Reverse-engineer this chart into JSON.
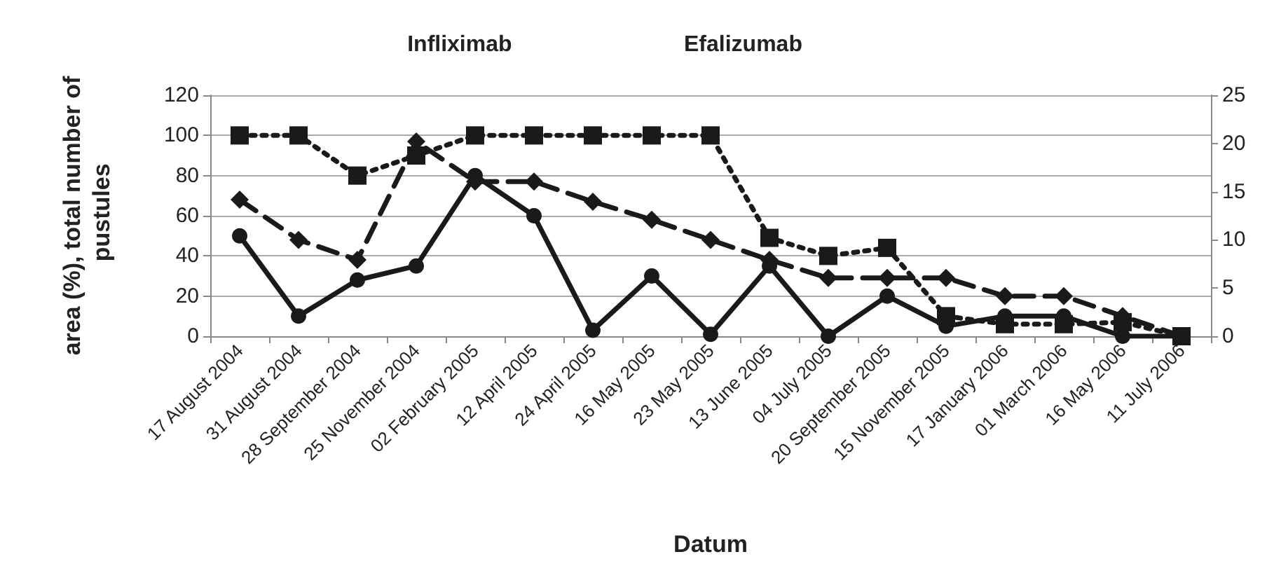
{
  "chart_data": {
    "type": "line",
    "xlabel": "Datum",
    "ylabel": "area (%), total number of pustules",
    "annotations": [
      "Infliximab",
      "Efalizumab"
    ],
    "categories": [
      "17 August 2004",
      "31 August 2004",
      "28 September 2004",
      "25 November 2004",
      "02 February 2005",
      "12 April 2005",
      "24 April 2005",
      "16 May 2005",
      "23 May 2005",
      "13 June 2005",
      "04 July 2005",
      "20 September 2005",
      "15 November 2005",
      "17 January 2006",
      "01 March 2006",
      "16 May 2006",
      "11 July 2006"
    ],
    "series": [
      {
        "color": "#1a1a1a",
        "marker": "circle",
        "line_style": "solid",
        "values": [
          50,
          10,
          28,
          35,
          80,
          60,
          3,
          30,
          1,
          35,
          0,
          20,
          5,
          10,
          10,
          0,
          0
        ]
      },
      {
        "color": "#1a1a1a",
        "marker": "diamond",
        "line_style": "dashed",
        "values": [
          68,
          48,
          38,
          97,
          77,
          77,
          67,
          58,
          48,
          38,
          29,
          29,
          29,
          20,
          20,
          10,
          0
        ]
      },
      {
        "color": "#1a1a1a",
        "marker": "square",
        "line_style": "dotted",
        "values": [
          100,
          100,
          80,
          90,
          100,
          100,
          100,
          100,
          100,
          49,
          40,
          44,
          10,
          6,
          6,
          7,
          0
        ]
      }
    ],
    "ylim": [
      0,
      120
    ],
    "yticks": [
      0,
      20,
      40,
      60,
      80,
      100,
      120
    ],
    "y2lim": [
      0,
      25
    ],
    "y2ticks": [
      0,
      5,
      10,
      15,
      20,
      25
    ],
    "grid": "y"
  }
}
